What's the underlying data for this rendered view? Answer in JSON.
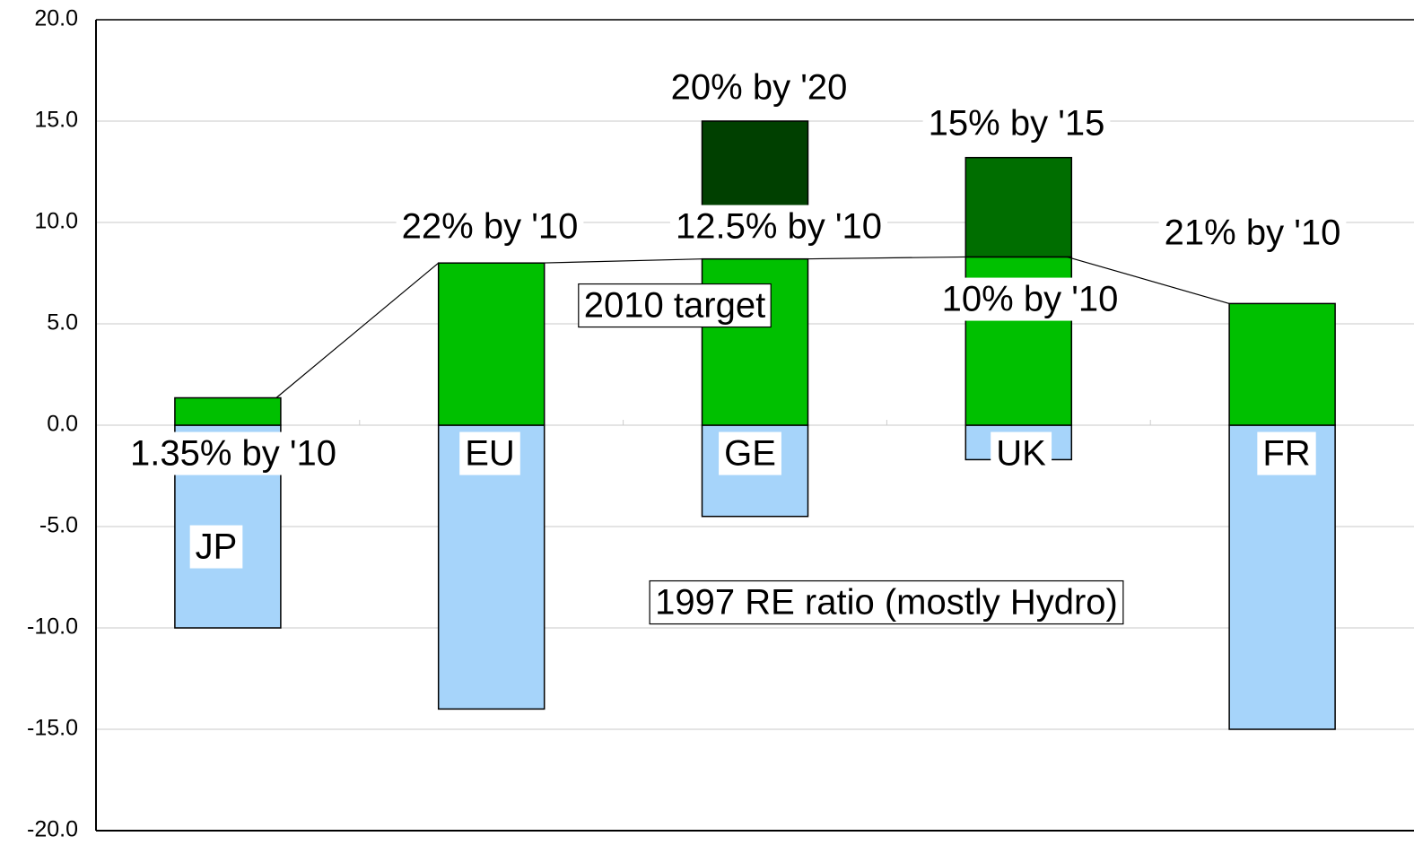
{
  "chart_data": {
    "type": "bar",
    "categories": [
      "JP",
      "EU",
      "GE",
      "UK",
      "FR"
    ],
    "series": [
      {
        "name": "1997 RE ratio (mostly Hydro)",
        "color": "#a6d4fa",
        "values": [
          -10,
          -14,
          -4.5,
          -1.7,
          -15
        ]
      },
      {
        "name": "2010 target",
        "color": "#00c000",
        "values": [
          1.35,
          8.0,
          8.2,
          8.3,
          6.0
        ]
      },
      {
        "colors": [
          null,
          null,
          "#004000",
          "#006e00",
          null
        ],
        "ranges": [
          null,
          null,
          [
            10.7,
            15
          ],
          [
            8.3,
            13.2
          ],
          null
        ]
      }
    ],
    "target_labels": [
      "1.35% by '10",
      "22% by '10",
      "12.5% by '10",
      "10% by '10",
      "21% by '10"
    ],
    "later_labels": [
      null,
      null,
      "20% by '20",
      "15% by '15",
      null
    ],
    "ylim": [
      -20,
      20
    ],
    "yticks": [
      {
        "value": -20,
        "label": "-20.0"
      },
      {
        "value": -15,
        "label": "-15.0"
      },
      {
        "value": -10,
        "label": "-10.0"
      },
      {
        "value": -5,
        "label": "-5.0"
      },
      {
        "value": 0,
        "label": "0.0"
      },
      {
        "value": 5,
        "label": "5.0"
      },
      {
        "value": 10,
        "label": "10.0"
      },
      {
        "value": 15,
        "label": "15.0"
      },
      {
        "value": 20,
        "label": "20.0"
      }
    ],
    "grid": true
  }
}
